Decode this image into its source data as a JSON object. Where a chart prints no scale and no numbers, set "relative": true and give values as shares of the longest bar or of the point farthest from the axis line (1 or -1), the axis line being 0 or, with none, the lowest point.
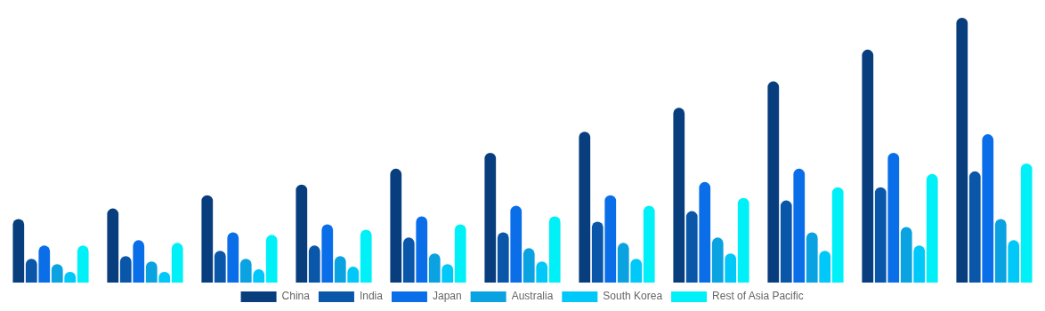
{
  "chart_data": {
    "type": "bar",
    "relative": true,
    "legend": "bottom",
    "grid": false,
    "categories": [
      null,
      null,
      null,
      null,
      null,
      null,
      null,
      null,
      null,
      null,
      null
    ],
    "series": [
      {
        "name": "China",
        "color": "#083e7e",
        "values": [
          0.24,
          0.28,
          0.33,
          0.37,
          0.43,
          0.49,
          0.57,
          0.66,
          0.76,
          0.88,
          1
        ]
      },
      {
        "name": "India",
        "color": "#0a56a8",
        "values": [
          0.09,
          0.1,
          0.12,
          0.14,
          0.17,
          0.19,
          0.23,
          0.27,
          0.31,
          0.36,
          0.42
        ]
      },
      {
        "name": "Japan",
        "color": "#0a6ee8",
        "values": [
          0.14,
          0.16,
          0.19,
          0.22,
          0.25,
          0.29,
          0.33,
          0.38,
          0.43,
          0.49,
          0.56
        ]
      },
      {
        "name": "Australia",
        "color": "#0aa2e0",
        "values": [
          0.07,
          0.08,
          0.09,
          0.1,
          0.11,
          0.13,
          0.15,
          0.17,
          0.19,
          0.21,
          0.24
        ]
      },
      {
        "name": "South Korea",
        "color": "#00c8f8",
        "values": [
          0.04,
          0.04,
          0.05,
          0.06,
          0.07,
          0.08,
          0.09,
          0.11,
          0.12,
          0.14,
          0.16
        ]
      },
      {
        "name": "Rest of Asia Pacific",
        "color": "#00f0f8",
        "values": [
          0.14,
          0.15,
          0.18,
          0.2,
          0.22,
          0.25,
          0.29,
          0.32,
          0.36,
          0.41,
          0.45
        ]
      }
    ]
  }
}
